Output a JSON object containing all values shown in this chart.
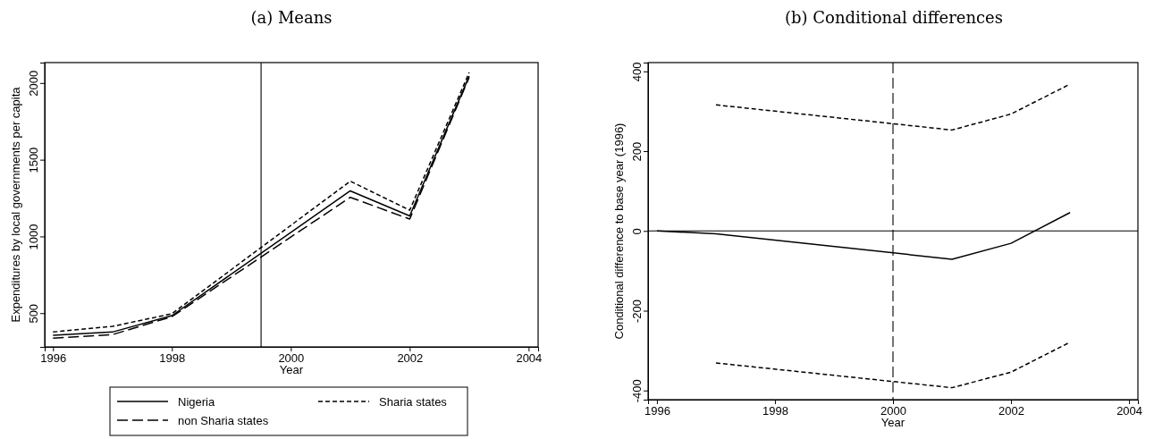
{
  "chart_data": [
    {
      "type": "line",
      "title": "(a) Means",
      "xlabel": "Year",
      "ylabel": "Expenditures by local governments per capita",
      "x": [
        1996,
        1997,
        1998,
        2001,
        2002,
        2003
      ],
      "xlim": [
        1995.86,
        2004.16
      ],
      "xticks": [
        1996,
        1998,
        2000,
        2002,
        2004
      ],
      "ylim": [
        280,
        2133
      ],
      "yticks": [
        500,
        1000,
        1500,
        2000
      ],
      "legend": "bottom",
      "grid": false,
      "series": [
        {
          "name": "Nigeria",
          "color": "#000000",
          "line_style": "solid",
          "values": [
            356,
            377,
            484,
            1297,
            1134,
            2045
          ]
        },
        {
          "name": "Sharia states",
          "color": "#000000",
          "line_style": "dashed",
          "values": [
            377,
            414,
            496,
            1360,
            1171,
            2068
          ]
        },
        {
          "name": "non Sharia states",
          "color": "#000000",
          "line_style": "longdash",
          "values": [
            337,
            360,
            477,
            1255,
            1113,
            2037
          ]
        }
      ],
      "ref_lines": [
        {
          "axis": "x",
          "value": 1999.5,
          "color": "#000000",
          "line_style": "solid"
        }
      ]
    },
    {
      "type": "line",
      "title": "(b) Conditional differences",
      "xlabel": "Year",
      "ylabel": "Conditional difference to base year (1996)",
      "xlim": [
        1995.85,
        2004.15
      ],
      "xticks": [
        1996,
        1998,
        2000,
        2002,
        2004
      ],
      "ylim": [
        -423,
        422
      ],
      "yticks": [
        -400,
        -200,
        0,
        200,
        400
      ],
      "legend": false,
      "grid": false,
      "series": [
        {
          "color": "#000000",
          "line_style": "solid",
          "x": [
            1996,
            1997,
            2001,
            2002,
            2003
          ],
          "values": [
            0,
            -7,
            -71,
            -31,
            46
          ]
        },
        {
          "color": "#000000",
          "line_style": "dashed",
          "x": [
            1997,
            2001,
            2002,
            2003
          ],
          "values": [
            316,
            253,
            293,
            368
          ]
        },
        {
          "color": "#000000",
          "line_style": "dashed",
          "x": [
            1997,
            2001,
            2002,
            2003
          ],
          "values": [
            -331,
            -393,
            -354,
            -279
          ]
        }
      ],
      "ref_lines": [
        {
          "axis": "y",
          "value": 0,
          "color": "#000000",
          "line_style": "solid"
        },
        {
          "axis": "x",
          "value": 2000,
          "color": "#000000",
          "line_style": "longdash"
        }
      ]
    }
  ]
}
